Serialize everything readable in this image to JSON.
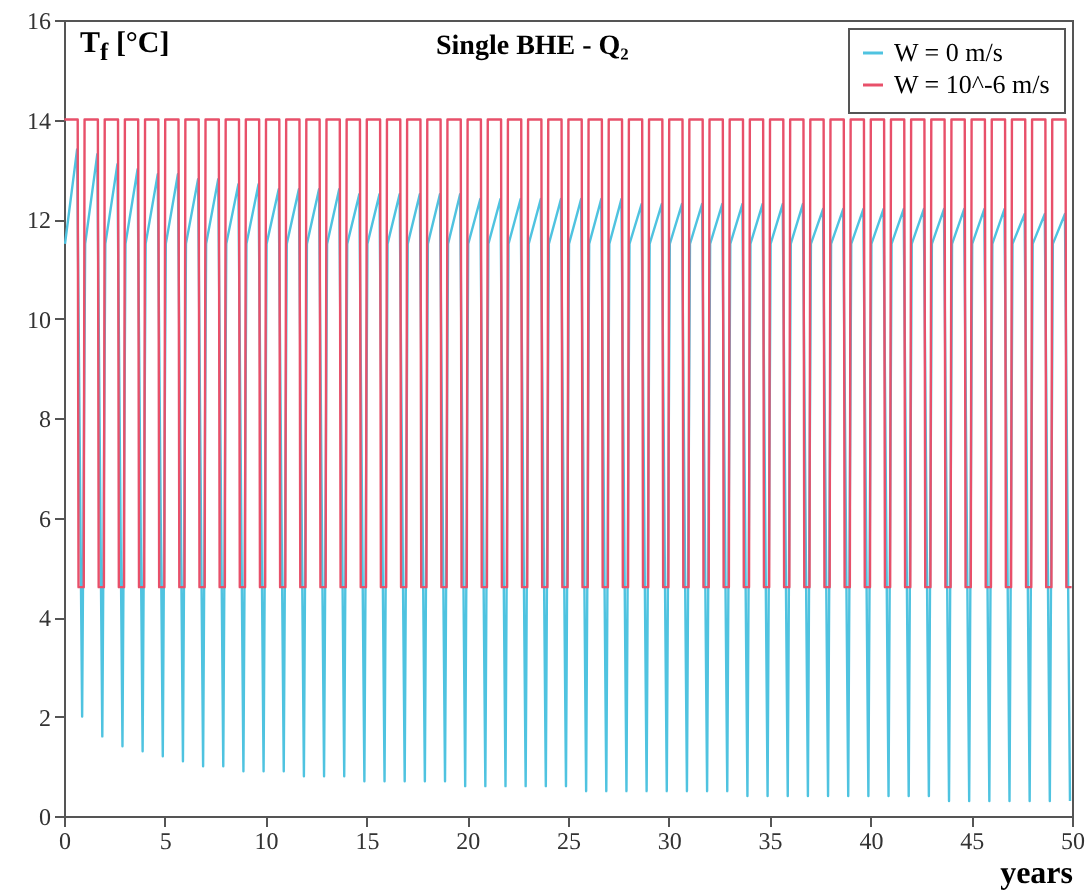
{
  "chart_data": {
    "type": "line",
    "title": "Single BHE - Q₂",
    "xlabel": "years",
    "ylabel": "T$_{f}$ [°C]",
    "xlim": [
      0,
      50
    ],
    "xticks": [
      0,
      5,
      10,
      15,
      20,
      25,
      30,
      35,
      40,
      45,
      50
    ],
    "ylim": [
      0,
      16
    ],
    "yticks": [
      0,
      2,
      4,
      6,
      8,
      10,
      12,
      14,
      16
    ],
    "grid": false,
    "legend": "top right",
    "marker": "none",
    "line_style": "solid",
    "series": [
      {
        "name": "W = 0 m/s",
        "color": "#4fc3e0",
        "x": [
          0.05,
          0.65,
          0.9,
          1.05,
          1.65,
          1.9,
          2.05,
          2.65,
          2.9,
          3.05,
          3.65,
          3.9,
          4.05,
          4.65,
          4.9,
          5.05,
          5.65,
          5.9,
          6.05,
          6.65,
          6.9,
          7.05,
          7.65,
          7.9,
          8.05,
          8.65,
          8.9,
          9.05,
          9.65,
          9.9,
          10.05,
          10.65,
          10.9,
          11.05,
          11.65,
          11.9,
          12.05,
          12.65,
          12.9,
          13.05,
          13.65,
          13.9,
          14.05,
          14.65,
          14.9,
          15.05,
          15.65,
          15.9,
          16.05,
          16.65,
          16.9,
          17.05,
          17.65,
          17.9,
          18.05,
          18.65,
          18.9,
          19.05,
          19.65,
          19.9,
          20.05,
          20.65,
          20.9,
          21.05,
          21.65,
          21.9,
          22.05,
          22.65,
          22.9,
          23.05,
          23.65,
          23.9,
          24.05,
          24.65,
          24.9,
          25.05,
          25.65,
          25.9,
          26.05,
          26.65,
          26.9,
          27.05,
          27.65,
          27.9,
          28.05,
          28.65,
          28.9,
          29.05,
          29.65,
          29.9,
          30.05,
          30.65,
          30.9,
          31.05,
          31.65,
          31.9,
          32.05,
          32.65,
          32.9,
          33.05,
          33.65,
          33.9,
          34.05,
          34.65,
          34.9,
          35.05,
          35.65,
          35.9,
          36.05,
          36.65,
          36.9,
          37.05,
          37.65,
          37.9,
          38.05,
          38.65,
          38.9,
          39.05,
          39.65,
          39.9,
          40.05,
          40.65,
          40.9,
          41.05,
          41.65,
          41.9,
          42.05,
          42.65,
          42.9,
          43.05,
          43.65,
          43.9,
          44.05,
          44.65,
          44.9,
          45.05,
          45.65,
          45.9,
          46.05,
          46.65,
          46.9,
          47.05,
          47.65,
          47.9,
          48.05,
          48.65,
          48.9,
          49.05,
          49.65,
          49.9
        ],
        "values": [
          11.5,
          13.4,
          2.0,
          11.5,
          13.3,
          1.6,
          11.5,
          13.1,
          1.4,
          11.5,
          13.0,
          1.3,
          11.5,
          12.9,
          1.2,
          11.5,
          12.9,
          1.1,
          11.5,
          12.8,
          1.0,
          11.5,
          12.8,
          1.0,
          11.5,
          12.7,
          0.9,
          11.5,
          12.7,
          0.9,
          11.5,
          12.6,
          0.9,
          11.5,
          12.6,
          0.8,
          11.5,
          12.6,
          0.8,
          11.5,
          12.6,
          0.8,
          11.5,
          12.5,
          0.7,
          11.5,
          12.5,
          0.7,
          11.5,
          12.5,
          0.7,
          11.5,
          12.5,
          0.7,
          11.5,
          12.5,
          0.7,
          11.5,
          12.5,
          0.6,
          11.5,
          12.4,
          0.6,
          11.5,
          12.4,
          0.6,
          11.5,
          12.4,
          0.6,
          11.5,
          12.4,
          0.6,
          11.5,
          12.4,
          0.6,
          11.5,
          12.4,
          0.5,
          11.5,
          12.4,
          0.5,
          11.5,
          12.4,
          0.5,
          11.5,
          12.3,
          0.5,
          11.5,
          12.3,
          0.5,
          11.5,
          12.3,
          0.5,
          11.5,
          12.3,
          0.5,
          11.5,
          12.3,
          0.5,
          11.5,
          12.3,
          0.4,
          11.5,
          12.3,
          0.4,
          11.5,
          12.3,
          0.4,
          11.5,
          12.3,
          0.4,
          11.5,
          12.2,
          0.4,
          11.5,
          12.2,
          0.4,
          11.5,
          12.2,
          0.4,
          11.5,
          12.2,
          0.4,
          11.5,
          12.2,
          0.4,
          11.5,
          12.2,
          0.4,
          11.5,
          12.2,
          0.3,
          11.5,
          12.2,
          0.3,
          11.5,
          12.2,
          0.3,
          11.5,
          12.2,
          0.3,
          11.5,
          12.1,
          0.3,
          11.5,
          12.1,
          0.3,
          11.5,
          12.1,
          0.3
        ]
      },
      {
        "name": "W = 10^-6 m/s",
        "color": "#e8506a",
        "x": [
          0.02,
          0.68,
          0.72,
          0.98,
          1.02,
          1.68,
          1.72,
          1.98,
          2.02,
          2.68,
          2.72,
          2.98,
          3.02,
          3.68,
          3.72,
          3.98,
          4.02,
          4.68,
          4.72,
          4.98,
          5.02,
          5.68,
          5.72,
          5.98,
          6.02,
          6.68,
          6.72,
          6.98,
          7.02,
          7.68,
          7.72,
          7.98,
          8.02,
          8.68,
          8.72,
          8.98,
          9.02,
          9.68,
          9.72,
          9.98,
          10.02,
          10.68,
          10.72,
          10.98,
          11.02,
          11.68,
          11.72,
          11.98,
          12.02,
          12.68,
          12.72,
          12.98,
          13.02,
          13.68,
          13.72,
          13.98,
          14.02,
          14.68,
          14.72,
          14.98,
          15.02,
          15.68,
          15.72,
          15.98,
          16.02,
          16.68,
          16.72,
          16.98,
          17.02,
          17.68,
          17.72,
          17.98,
          18.02,
          18.68,
          18.72,
          18.98,
          19.02,
          19.68,
          19.72,
          19.98,
          20.02,
          20.68,
          20.72,
          20.98,
          21.02,
          21.68,
          21.72,
          21.98,
          22.02,
          22.68,
          22.72,
          22.98,
          23.02,
          23.68,
          23.72,
          23.98,
          24.02,
          24.68,
          24.72,
          24.98,
          25.02,
          25.68,
          25.72,
          25.98,
          26.02,
          26.68,
          26.72,
          26.98,
          27.02,
          27.68,
          27.72,
          27.98,
          28.02,
          28.68,
          28.72,
          28.98,
          29.02,
          29.68,
          29.72,
          29.98,
          30.02,
          30.68,
          30.72,
          30.98,
          31.02,
          31.68,
          31.72,
          31.98,
          32.02,
          32.68,
          32.72,
          32.98,
          33.02,
          33.68,
          33.72,
          33.98,
          34.02,
          34.68,
          34.72,
          34.98,
          35.02,
          35.68,
          35.72,
          35.98,
          36.02,
          36.68,
          36.72,
          36.98,
          37.02,
          37.68,
          37.72,
          37.98,
          38.02,
          38.68,
          38.72,
          38.98,
          39.02,
          39.68,
          39.72,
          39.98,
          40.02,
          40.68,
          40.72,
          40.98,
          41.02,
          41.68,
          41.72,
          41.98,
          42.02,
          42.68,
          42.72,
          42.98,
          43.02,
          43.68,
          43.72,
          43.98,
          44.02,
          44.68,
          44.72,
          44.98,
          45.02,
          45.68,
          45.72,
          45.98,
          46.02,
          46.68,
          46.72,
          46.98,
          47.02,
          47.68,
          47.72,
          47.98,
          48.02,
          48.68,
          48.72,
          48.98,
          49.02,
          49.68,
          49.72,
          49.98
        ],
        "values": [
          14,
          14,
          4.6,
          4.6,
          14,
          14,
          4.6,
          4.6,
          14,
          14,
          4.6,
          4.6,
          14,
          14,
          4.6,
          4.6,
          14,
          14,
          4.6,
          4.6,
          14,
          14,
          4.6,
          4.6,
          14,
          14,
          4.6,
          4.6,
          14,
          14,
          4.6,
          4.6,
          14,
          14,
          4.6,
          4.6,
          14,
          14,
          4.6,
          4.6,
          14,
          14,
          4.6,
          4.6,
          14,
          14,
          4.6,
          4.6,
          14,
          14,
          4.6,
          4.6,
          14,
          14,
          4.6,
          4.6,
          14,
          14,
          4.6,
          4.6,
          14,
          14,
          4.6,
          4.6,
          14,
          14,
          4.6,
          4.6,
          14,
          14,
          4.6,
          4.6,
          14,
          14,
          4.6,
          4.6,
          14,
          14,
          4.6,
          4.6,
          14,
          14,
          4.6,
          4.6,
          14,
          14,
          4.6,
          4.6,
          14,
          14,
          4.6,
          4.6,
          14,
          14,
          4.6,
          4.6,
          14,
          14,
          4.6,
          4.6,
          14,
          14,
          4.6,
          4.6,
          14,
          14,
          4.6,
          4.6,
          14,
          14,
          4.6,
          4.6,
          14,
          14,
          4.6,
          4.6,
          14,
          14,
          4.6,
          4.6,
          14,
          14,
          4.6,
          4.6,
          14,
          14,
          4.6,
          4.6,
          14,
          14,
          4.6,
          4.6,
          14,
          14,
          4.6,
          4.6,
          14,
          14,
          4.6,
          4.6,
          14,
          14,
          4.6,
          4.6,
          14,
          14,
          4.6,
          4.6,
          14,
          14,
          4.6,
          4.6,
          14,
          14,
          4.6,
          4.6,
          14,
          14,
          4.6,
          4.6,
          14,
          14,
          4.6,
          4.6,
          14,
          14,
          4.6,
          4.6,
          14,
          14,
          4.6,
          4.6,
          14,
          14,
          4.6,
          4.6,
          14,
          14,
          4.6,
          4.6,
          14,
          14,
          4.6,
          4.6,
          14,
          14,
          4.6,
          4.6,
          14,
          14,
          4.6,
          4.6,
          14,
          14,
          4.6,
          4.6,
          14,
          14,
          4.6,
          4.6
        ]
      }
    ]
  }
}
